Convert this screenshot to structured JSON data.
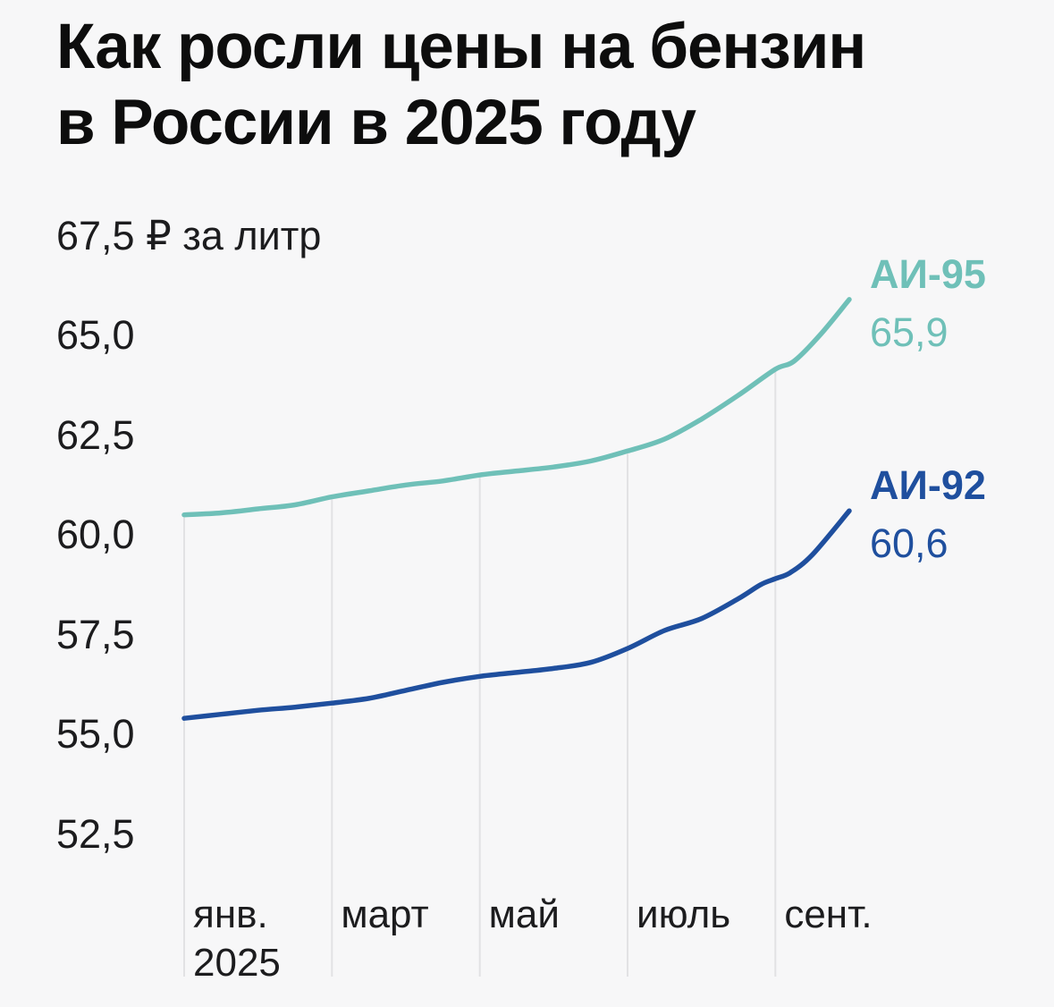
{
  "title_lines": [
    "Как росли цены на бензин",
    "в России в 2025 году"
  ],
  "colors": {
    "background": "#f7f7f8",
    "grid": "#e2e2e4",
    "title_text": "#0d0d0d",
    "axis_text": "#1c1c1e",
    "ai95_teal": "#6fc0b8",
    "ai92_blue": "#1f4f9e"
  },
  "chart_data": {
    "type": "line",
    "title": "Как росли цены на бензин в России в 2025 году",
    "currency_unit": "₽ за литр",
    "grid": "vertical-only",
    "legend_position": "right-end-of-lines",
    "y_axis": {
      "range": [
        51.5,
        67.5
      ],
      "ticks": [
        {
          "value": 67.5,
          "label": "67,5 ₽ за литр"
        },
        {
          "value": 65.0,
          "label": "65,0"
        },
        {
          "value": 62.5,
          "label": "62,5"
        },
        {
          "value": 60.0,
          "label": "60,0"
        },
        {
          "value": 57.5,
          "label": "57,5"
        },
        {
          "value": 55.0,
          "label": "55,0"
        },
        {
          "value": 52.5,
          "label": "52,5"
        }
      ]
    },
    "x_axis": {
      "unit": "months-of-2025, 0 = January",
      "ticks": [
        {
          "month": 0,
          "label": "янв.",
          "sublabel": "2025"
        },
        {
          "month": 2,
          "label": "март",
          "sublabel": ""
        },
        {
          "month": 4,
          "label": "май",
          "sublabel": ""
        },
        {
          "month": 6,
          "label": "июль",
          "sublabel": ""
        },
        {
          "month": 8,
          "label": "сент.",
          "sublabel": ""
        }
      ]
    },
    "series": [
      {
        "name": "АИ-95",
        "slug": "ai-95",
        "color": "#6fc0b8",
        "end_value_label": "65,9",
        "end_value": 65.9,
        "points": [
          [
            0,
            60.5
          ],
          [
            0.5,
            60.55
          ],
          [
            1,
            60.65
          ],
          [
            1.5,
            60.75
          ],
          [
            2,
            60.95
          ],
          [
            2.5,
            61.1
          ],
          [
            3,
            61.25
          ],
          [
            3.5,
            61.35
          ],
          [
            4,
            61.5
          ],
          [
            4.5,
            61.6
          ],
          [
            5,
            61.7
          ],
          [
            5.5,
            61.85
          ],
          [
            6,
            62.1
          ],
          [
            6.5,
            62.4
          ],
          [
            7,
            62.9
          ],
          [
            7.5,
            63.5
          ],
          [
            8,
            64.15
          ],
          [
            8.25,
            64.35
          ],
          [
            8.6,
            65.0
          ],
          [
            9,
            65.9
          ]
        ]
      },
      {
        "name": "АИ-92",
        "slug": "ai-92",
        "color": "#1f4f9e",
        "end_value_label": "60,6",
        "end_value": 60.6,
        "points": [
          [
            0,
            55.4
          ],
          [
            0.5,
            55.5
          ],
          [
            1,
            55.6
          ],
          [
            1.5,
            55.68
          ],
          [
            2,
            55.78
          ],
          [
            2.5,
            55.9
          ],
          [
            3,
            56.1
          ],
          [
            3.5,
            56.3
          ],
          [
            4,
            56.45
          ],
          [
            4.5,
            56.55
          ],
          [
            5,
            56.65
          ],
          [
            5.5,
            56.8
          ],
          [
            6,
            57.15
          ],
          [
            6.5,
            57.6
          ],
          [
            7,
            57.9
          ],
          [
            7.5,
            58.4
          ],
          [
            7.8,
            58.75
          ],
          [
            8,
            58.9
          ],
          [
            8.2,
            59.05
          ],
          [
            8.5,
            59.5
          ],
          [
            9,
            60.6
          ]
        ]
      }
    ]
  }
}
